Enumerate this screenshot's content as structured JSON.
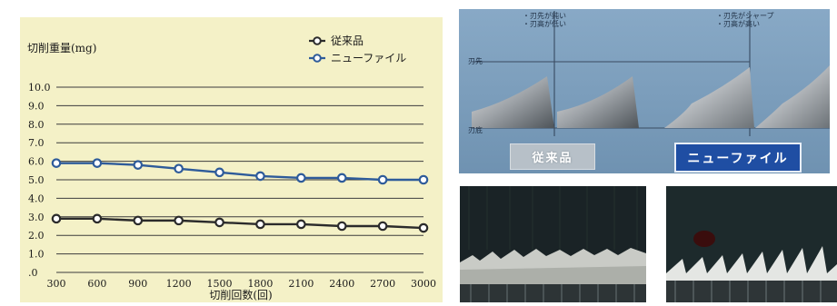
{
  "chart_data": {
    "type": "line",
    "ylabel": "切削重量(mg)",
    "xlabel": "切削回数(回)",
    "x": [
      300,
      600,
      900,
      1200,
      1500,
      1800,
      2100,
      2400,
      2700,
      3000
    ],
    "x_tick_labels": [
      "300",
      "600",
      "900",
      "1200",
      "1500",
      "1800",
      "2100",
      "2400",
      "2700",
      "3000"
    ],
    "y_tick_labels": [
      ".0",
      "1.0",
      "2.0",
      "3.0",
      "4.0",
      "5.0",
      "6.0",
      "7.0",
      "8.0",
      "9.0",
      "10.0"
    ],
    "ylim": [
      0,
      10
    ],
    "grid": true,
    "legend_position": "top-right",
    "series": [
      {
        "name": "従来品",
        "color": "#2b2b2b",
        "values": [
          2.9,
          2.9,
          2.8,
          2.8,
          2.7,
          2.6,
          2.6,
          2.5,
          2.5,
          2.4
        ]
      },
      {
        "name": "ニューファイル",
        "color": "#2e5b9a",
        "values": [
          5.9,
          5.9,
          5.8,
          5.6,
          5.4,
          5.2,
          5.1,
          5.1,
          5.0,
          5.0
        ]
      }
    ]
  },
  "diagram": {
    "note_left_1": "・刃先が鈍い",
    "note_left_2": "・刃高が低い",
    "note_right_1": "・刃先がシャープ",
    "note_right_2": "・刃高が高い",
    "side_top": "刃先",
    "side_bottom": "刃底",
    "btn_conventional": "従来品",
    "btn_newfile": "ニューファイル",
    "colors": {
      "background": "#7c9ebc",
      "highlight_button": "#1f4ea3"
    }
  }
}
